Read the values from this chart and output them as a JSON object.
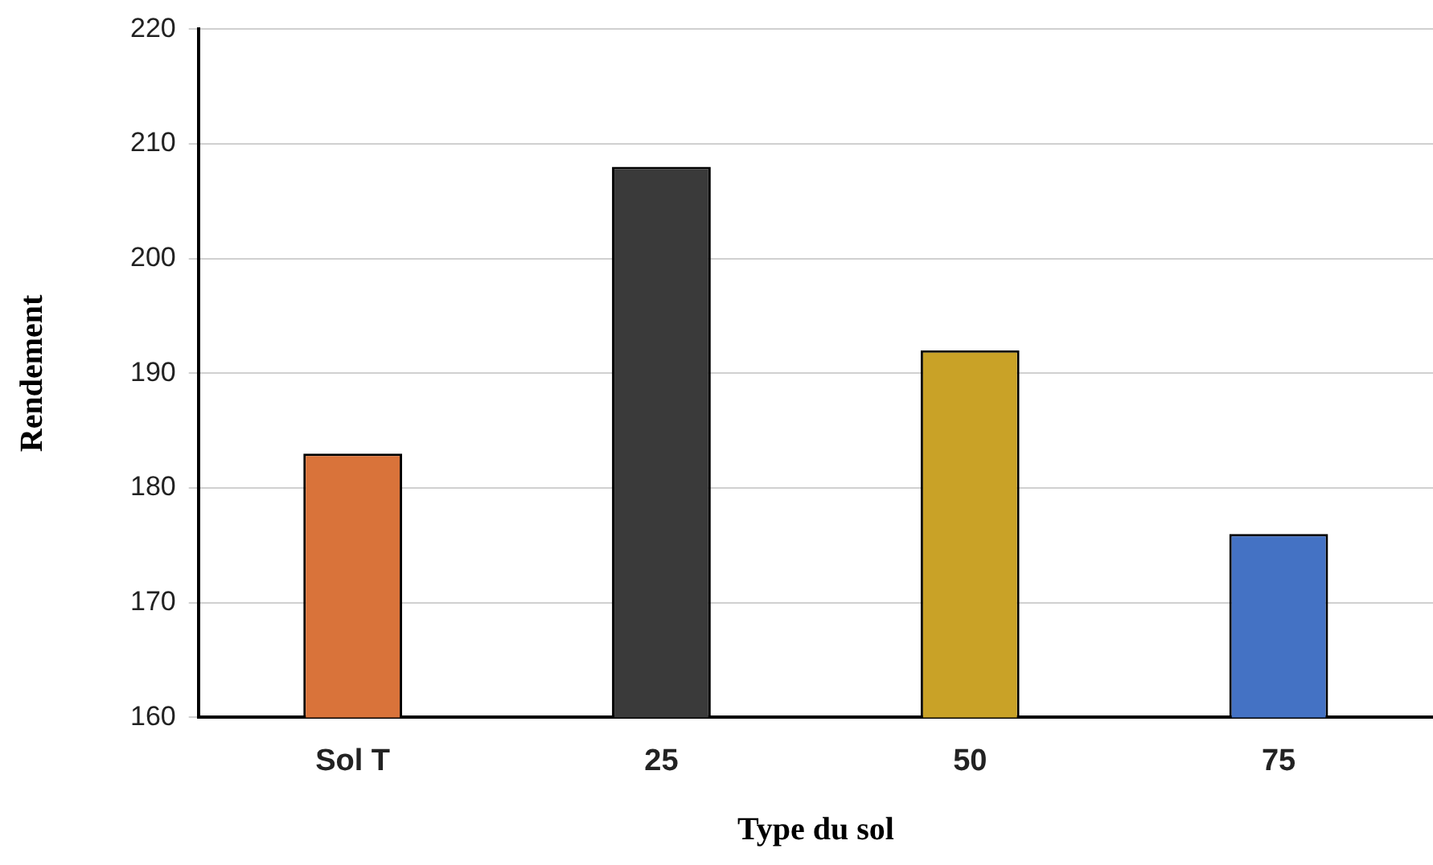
{
  "chart_data": {
    "type": "bar",
    "xlabel": "Type du sol",
    "ylabel": "Rendement",
    "categories": [
      "Sol T",
      "25",
      "50",
      "75"
    ],
    "values": [
      183,
      208,
      192,
      176
    ],
    "colors": [
      "#d9733a",
      "#3a3a3a",
      "#c9a227",
      "#4472c4"
    ],
    "ylim": [
      160,
      220
    ],
    "yticks": [
      160,
      170,
      180,
      190,
      200,
      210,
      220
    ],
    "grid": "y",
    "legend": false
  }
}
